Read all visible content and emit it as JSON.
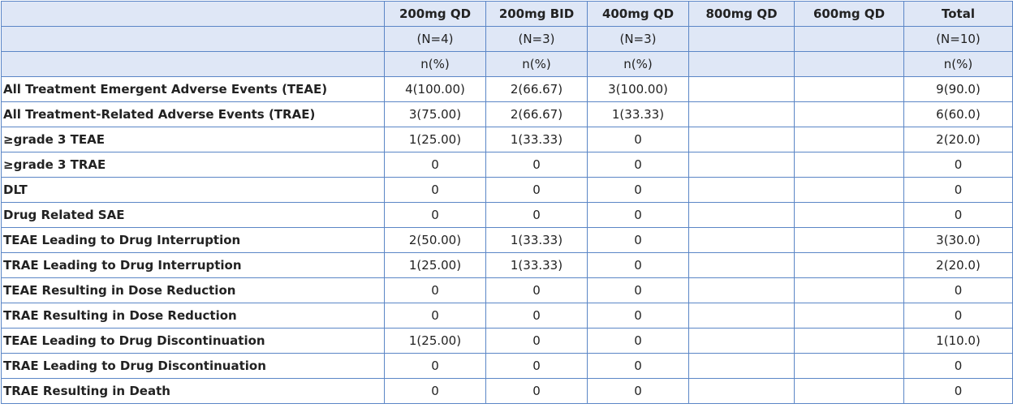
{
  "table": {
    "columns": [
      "200mg QD",
      "200mg BID",
      "400mg QD",
      "800mg QD",
      "600mg QD",
      "Total"
    ],
    "n_row": [
      "(N=4)",
      "(N=3)",
      "(N=3)",
      null,
      null,
      "(N=10)"
    ],
    "unit_row": [
      "n(%)",
      "n(%)",
      "n(%)",
      null,
      null,
      "n(%)"
    ],
    "rows": [
      {
        "label": "All Treatment Emergent Adverse Events (TEAE)",
        "cells": [
          "4(100.00)",
          "2(66.67)",
          "3(100.00)",
          null,
          null,
          "9(90.0)"
        ]
      },
      {
        "label": "All Treatment-Related Adverse Events (TRAE)",
        "cells": [
          "3(75.00)",
          "2(66.67)",
          "1(33.33)",
          null,
          null,
          "6(60.0)"
        ]
      },
      {
        "label": "≥grade 3 TEAE",
        "cells": [
          "1(25.00)",
          "1(33.33)",
          "0",
          null,
          null,
          "2(20.0)"
        ]
      },
      {
        "label": "≥grade 3 TRAE",
        "cells": [
          "0",
          "0",
          "0",
          null,
          null,
          "0"
        ]
      },
      {
        "label": "DLT",
        "cells": [
          "0",
          "0",
          "0",
          null,
          null,
          "0"
        ]
      },
      {
        "label": "Drug Related SAE",
        "cells": [
          "0",
          "0",
          "0",
          null,
          null,
          "0"
        ]
      },
      {
        "label": "TEAE Leading to Drug Interruption",
        "cells": [
          "2(50.00)",
          "1(33.33)",
          "0",
          null,
          null,
          "3(30.0)"
        ]
      },
      {
        "label": "TRAE Leading to Drug Interruption",
        "cells": [
          "1(25.00)",
          "1(33.33)",
          "0",
          null,
          null,
          "2(20.0)"
        ]
      },
      {
        "label": "TEAE Resulting in Dose Reduction",
        "cells": [
          "0",
          "0",
          "0",
          null,
          null,
          "0"
        ]
      },
      {
        "label": "TRAE Resulting in Dose Reduction",
        "cells": [
          "0",
          "0",
          "0",
          null,
          null,
          "0"
        ]
      },
      {
        "label": "TEAE Leading to Drug Discontinuation",
        "cells": [
          "1(25.00)",
          "0",
          "0",
          null,
          null,
          "1(10.0)"
        ]
      },
      {
        "label": "TRAE Leading to Drug Discontinuation",
        "cells": [
          "0",
          "0",
          "0",
          null,
          null,
          "0"
        ]
      },
      {
        "label": "TRAE Resulting in Death",
        "cells": [
          "0",
          "0",
          "0",
          null,
          null,
          "0"
        ]
      }
    ]
  }
}
